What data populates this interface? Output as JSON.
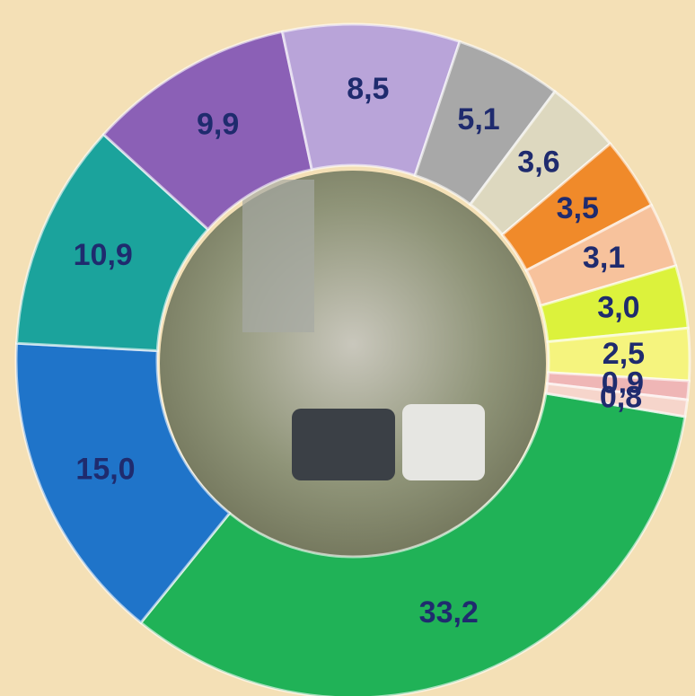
{
  "chart_data": {
    "type": "donut",
    "values": [
      33.2,
      15.0,
      10.9,
      9.9,
      8.5,
      5.1,
      3.6,
      3.5,
      3.1,
      3.0,
      2.5,
      0.9,
      0.8
    ],
    "value_labels": [
      "33,2",
      "15,0",
      "10,9",
      "9,9",
      "8,5",
      "5,1",
      "3,6",
      "3,5",
      "3,1",
      "3,0",
      "2,5",
      "0,9",
      "0,8"
    ],
    "colors": [
      "#20b257",
      "#1f74c9",
      "#1ba39c",
      "#8b60b6",
      "#b9a4d9",
      "#a8a8a8",
      "#ddd8bf",
      "#f08a2a",
      "#f7c29c",
      "#dcf23c",
      "#f5f47e",
      "#efb6b6",
      "#f6d5cb"
    ],
    "label_color": "#1f2b6e"
  }
}
